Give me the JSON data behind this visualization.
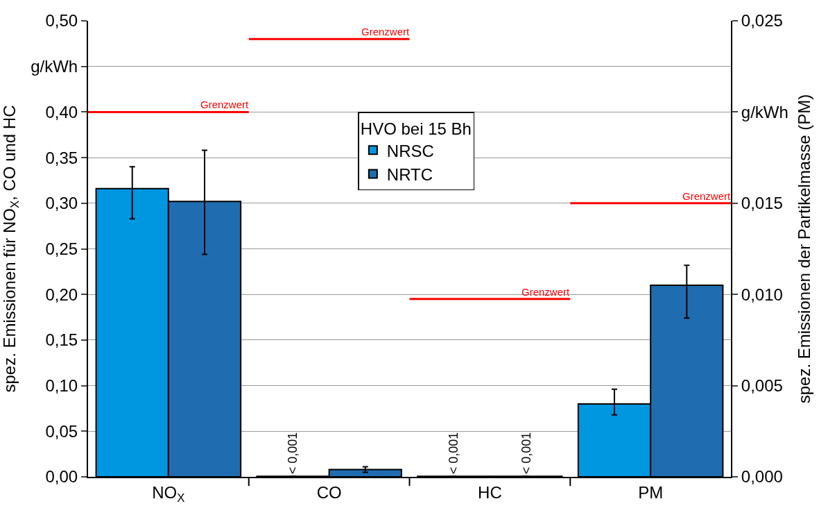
{
  "chart_data": {
    "type": "bar",
    "categories": [
      "NO$_{X}$",
      "CO",
      "HC",
      "PM"
    ],
    "ylabel": "spez. Emissionen für NO$_{X}$, CO und HC",
    "y2label": "spez. Emissionen der Partikelmasse (PM)",
    "legend_title": "HVO bei 15 Bh",
    "series": [
      {
        "name": "NRSC",
        "color": "#0096e0",
        "values": [
          0.316,
          0.0005,
          0.0005,
          null
        ],
        "errors": [
          [
            0.283,
            0.34
          ],
          null,
          null,
          null
        ],
        "value_labels": [
          null,
          "< 0,001",
          "< 0,001",
          null
        ]
      },
      {
        "name": "NRTC",
        "color": "#1f6db0",
        "values": [
          0.302,
          0.008,
          0.0005,
          null
        ],
        "errors": [
          [
            0.244,
            0.358
          ],
          [
            0.005,
            0.011
          ],
          null,
          null
        ],
        "value_labels": [
          null,
          null,
          "< 0,001",
          null
        ]
      },
      {
        "color": "#0096e0",
        "axis": "y2",
        "values": [
          null,
          null,
          null,
          0.004
        ],
        "errors": [
          null,
          null,
          null,
          [
            0.0034,
            0.0048
          ]
        ]
      },
      {
        "color": "#1f6db0",
        "axis": "y2",
        "values": [
          null,
          null,
          null,
          0.0105
        ],
        "errors": [
          null,
          null,
          null,
          [
            0.0087,
            0.0116
          ]
        ]
      }
    ],
    "ylim": [
      0,
      0.5
    ],
    "yticks": [
      {
        "value": 0,
        "label": "0,00"
      },
      {
        "value": 0.05,
        "label": "0,05"
      },
      {
        "value": 0.1,
        "label": "0,10"
      },
      {
        "value": 0.15,
        "label": "0,15"
      },
      {
        "value": 0.2,
        "label": "0,20"
      },
      {
        "value": 0.25,
        "label": "0,25"
      },
      {
        "value": 0.3,
        "label": "0,30"
      },
      {
        "value": 0.35,
        "label": "0,35"
      },
      {
        "value": 0.4,
        "label": "0,40"
      },
      {
        "value": 0.45,
        "label": "g/kWh"
      },
      {
        "value": 0.5,
        "label": "0,50"
      }
    ],
    "y2lim": [
      0,
      0.025
    ],
    "y2ticks": [
      {
        "value": 0,
        "label": "0,000"
      },
      {
        "value": 0.005,
        "label": "0,005"
      },
      {
        "value": 0.01,
        "label": "0,010"
      },
      {
        "value": 0.015,
        "label": "0,015"
      },
      {
        "value": 0.02,
        "label": "g/kWh"
      },
      {
        "value": 0.025,
        "label": "0,025"
      }
    ],
    "ref_lines": [
      {
        "axis": "y",
        "value": 0.4,
        "label": "Grenzwert",
        "color": "#ff0000"
      },
      {
        "axis": "y",
        "value": 0.48,
        "label": "Grenzwert",
        "color": "#ff0000"
      },
      {
        "axis": "y",
        "value": 0.195,
        "label": "Grenzwert",
        "color": "#ff0000"
      },
      {
        "axis": "y2",
        "value": 0.015,
        "label": "Grenzwert",
        "color": "#ff0000"
      }
    ],
    "grid": "y",
    "legend": "top"
  }
}
